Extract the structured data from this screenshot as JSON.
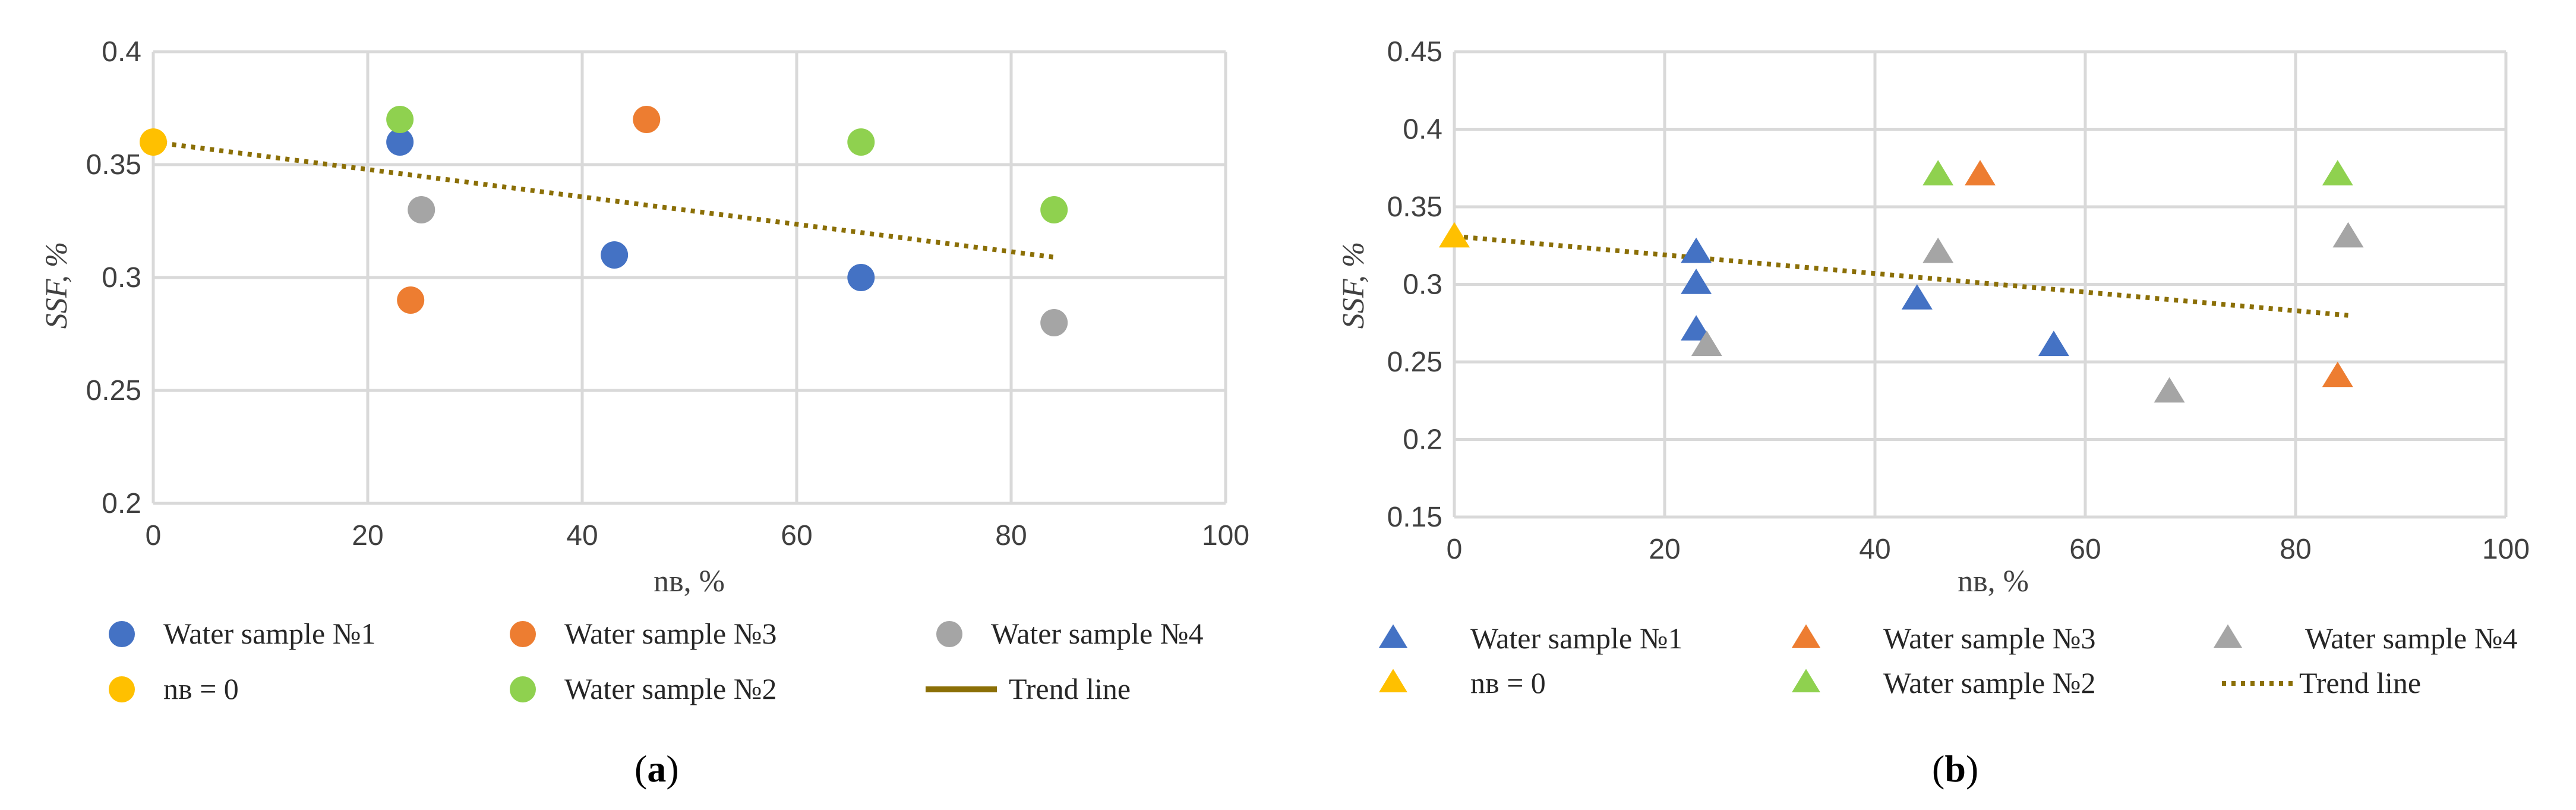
{
  "chart_data": [
    {
      "id": "a",
      "type": "scatter",
      "marker": "circle",
      "caption_letter": "a",
      "xlabel": "nв, %",
      "ylabel": "SSF, %",
      "xlim": [
        0,
        100
      ],
      "ylim": [
        0.2,
        0.4
      ],
      "xticks": [
        "0",
        "20",
        "40",
        "60",
        "80",
        "100"
      ],
      "yticks": [
        "0.2",
        "0.25",
        "0.3",
        "0.35",
        "0.4"
      ],
      "grid": true,
      "legend_position": "bottom",
      "series": [
        {
          "name": "Water sample №1",
          "color": "#4472C4",
          "points": [
            [
              23,
              0.36
            ],
            [
              43,
              0.31
            ],
            [
              66,
              0.3
            ]
          ]
        },
        {
          "name": "Water sample №3",
          "color": "#ED7D31",
          "points": [
            [
              24,
              0.29
            ],
            [
              46,
              0.37
            ]
          ]
        },
        {
          "name": "Water sample №4",
          "color": "#A5A5A5",
          "points": [
            [
              25,
              0.33
            ],
            [
              84,
              0.28
            ]
          ]
        },
        {
          "name": "nв = 0",
          "color": "#FFC000",
          "points": [
            [
              0,
              0.36
            ]
          ]
        },
        {
          "name": "Water sample №2",
          "color": "#8FD14F",
          "points": [
            [
              23,
              0.37
            ],
            [
              66,
              0.36
            ],
            [
              84,
              0.33
            ]
          ]
        }
      ],
      "trend": {
        "name": "Trend line",
        "color": "#8B6F06",
        "x": [
          0,
          84
        ],
        "y": [
          0.36,
          0.309
        ],
        "legend_style": "solid"
      }
    },
    {
      "id": "b",
      "type": "scatter",
      "marker": "triangle",
      "caption_letter": "b",
      "xlabel": "nв, %",
      "ylabel": "SSF, %",
      "xlim": [
        0,
        100
      ],
      "ylim": [
        0.15,
        0.45
      ],
      "xticks": [
        "0",
        "20",
        "40",
        "60",
        "80",
        "100"
      ],
      "yticks": [
        "0.15",
        "0.2",
        "0.25",
        "0.3",
        "0.35",
        "0.4",
        "0.45"
      ],
      "grid": true,
      "legend_position": "bottom",
      "series": [
        {
          "name": "Water sample №1",
          "color": "#4472C4",
          "points": [
            [
              23,
              0.32
            ],
            [
              23,
              0.3
            ],
            [
              23,
              0.27
            ],
            [
              44,
              0.29
            ],
            [
              57,
              0.26
            ]
          ]
        },
        {
          "name": "Water sample №3",
          "color": "#ED7D31",
          "points": [
            [
              50,
              0.37
            ],
            [
              84,
              0.24
            ]
          ]
        },
        {
          "name": "Water sample №4",
          "color": "#A5A5A5",
          "points": [
            [
              24,
              0.26
            ],
            [
              46,
              0.32
            ],
            [
              68,
              0.23
            ],
            [
              85,
              0.33
            ]
          ]
        },
        {
          "name": "nв = 0",
          "color": "#FFC000",
          "points": [
            [
              0,
              0.33
            ]
          ]
        },
        {
          "name": "Water sample №2",
          "color": "#8FD14F",
          "points": [
            [
              46,
              0.37
            ],
            [
              84,
              0.37
            ]
          ]
        }
      ],
      "trend": {
        "name": "Trend line",
        "color": "#8B6F06",
        "x": [
          0,
          85
        ],
        "y": [
          0.331,
          0.28
        ],
        "legend_style": "dotted"
      }
    }
  ]
}
